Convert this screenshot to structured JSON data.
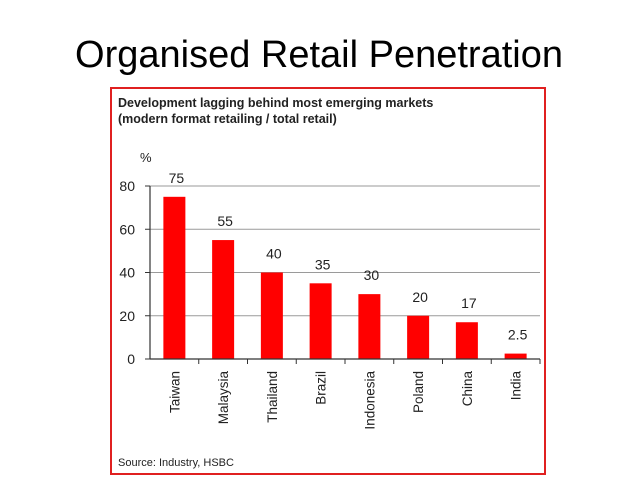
{
  "slide": {
    "title": "Organised Retail Penetration"
  },
  "chart_data": {
    "type": "bar",
    "title": "Development lagging behind most emerging markets",
    "subtitle": "(modern format retailing / total retail)",
    "ylabel": "%",
    "ylim": [
      0,
      80
    ],
    "yticks": [
      0,
      20,
      40,
      60,
      80
    ],
    "grid": true,
    "categories": [
      "Taiwan",
      "Malaysia",
      "Thailand",
      "Brazil",
      "Indonesia",
      "Poland",
      "China",
      "India"
    ],
    "values": [
      75,
      55,
      40,
      35,
      30,
      20,
      17,
      2.5
    ],
    "data_labels": [
      "75",
      "55",
      "40",
      "35",
      "30",
      "20",
      "17",
      "2.5"
    ],
    "source": "Source: Industry, HSBC",
    "colors": {
      "bar": "#ff0000",
      "frame": "#e02020",
      "grid": "#9a9a9a",
      "axis": "#333333"
    }
  }
}
